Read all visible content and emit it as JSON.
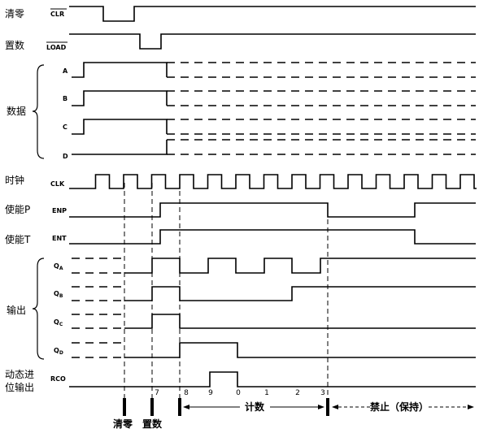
{
  "left_labels": {
    "clr": "清零",
    "load": "置数",
    "data": "数据",
    "clock": "时钟",
    "enp": "使能P",
    "ent": "使能T",
    "output": "输出",
    "rco_line1": "动态进",
    "rco_line2": "位输出"
  },
  "signals": {
    "clr": "CLR",
    "load": "LOAD",
    "a": "A",
    "b": "B",
    "c": "C",
    "d": "D",
    "clk": "CLK",
    "enp": "ENP",
    "ent": "ENT",
    "qa": {
      "q": "Q",
      "sub": "A"
    },
    "qb": {
      "q": "Q",
      "sub": "B"
    },
    "qc": {
      "q": "Q",
      "sub": "C"
    },
    "qd": {
      "q": "Q",
      "sub": "D"
    },
    "rco": "RCO"
  },
  "count_labels": [
    7,
    8,
    9,
    0,
    1,
    2,
    3
  ],
  "bottom": {
    "clear": "清零",
    "load": "置数",
    "count": "计数",
    "inhibit": "禁止（保持）"
  }
}
